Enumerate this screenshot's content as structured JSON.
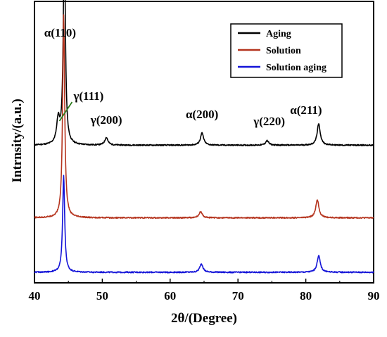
{
  "chart_data": {
    "type": "line",
    "title": "",
    "xlabel": "2θ/(Degree)",
    "ylabel": "Intrnsity/(a.u.)",
    "xlim": [
      40,
      90
    ],
    "xticks": [
      40,
      50,
      60,
      70,
      80,
      90
    ],
    "y_tick_labels_shown": false,
    "grid": false,
    "legend_position": "top-right",
    "series": [
      {
        "name": "Aging",
        "color": "#000000",
        "baseline": 0.42,
        "peaks": [
          {
            "x": 43.5,
            "height": 0.08
          },
          {
            "x": 44.4,
            "height": 0.7
          },
          {
            "x": 50.6,
            "height": 0.025
          },
          {
            "x": 64.7,
            "height": 0.04
          },
          {
            "x": 74.3,
            "height": 0.015
          },
          {
            "x": 81.9,
            "height": 0.07
          }
        ]
      },
      {
        "name": "Solution",
        "color": "#b5341e",
        "baseline": 0.18,
        "peaks": [
          {
            "x": 44.3,
            "height": 0.67
          },
          {
            "x": 64.5,
            "height": 0.02
          },
          {
            "x": 81.7,
            "height": 0.06
          }
        ]
      },
      {
        "name": "Solution aging",
        "color": "#1414d8",
        "baseline": 0.0,
        "peaks": [
          {
            "x": 44.3,
            "height": 0.32
          },
          {
            "x": 64.6,
            "height": 0.028
          },
          {
            "x": 81.9,
            "height": 0.055
          }
        ]
      }
    ],
    "annotations": [
      {
        "text": "α(110)",
        "x": 44.4
      },
      {
        "text": "γ(111)",
        "x": 44.3
      },
      {
        "text": "γ(200)",
        "x": 50.6
      },
      {
        "text": "α(200)",
        "x": 64.7
      },
      {
        "text": "γ(220)",
        "x": 74.3
      },
      {
        "text": "α(211)",
        "x": 81.9
      }
    ]
  }
}
